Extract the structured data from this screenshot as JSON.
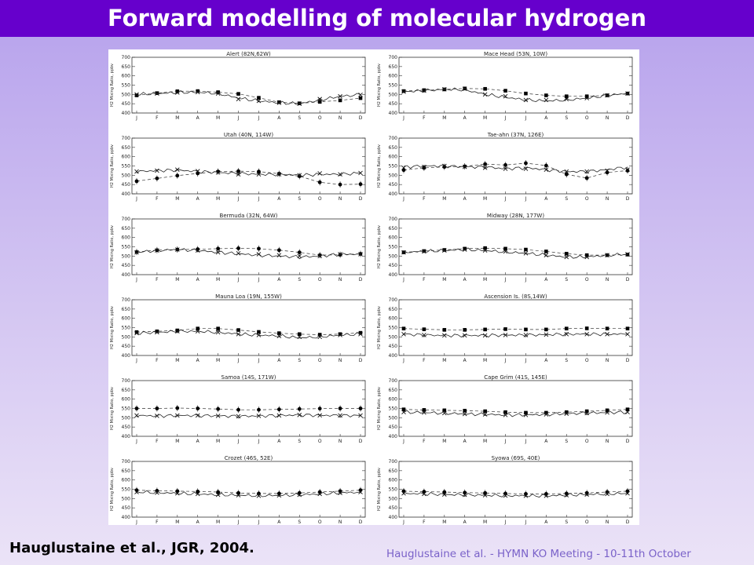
{
  "slide": {
    "title": "Forward modelling of molecular hydrogen",
    "citation": "Hauglustaine et al., JGR, 2004.",
    "footer": "Hauglustaine et al. - HYMN KO Meeting - 10-11th October",
    "title_bar_color": "#6600cc",
    "title_color": "#ffffff",
    "footer_color": "#7a62c9"
  },
  "chart_data": [
    {
      "type": "line",
      "title": "Alert (82N,62W)",
      "ylabel": "H2 Mixing Ratio, ppbv",
      "ylim": [
        400,
        700
      ],
      "yticks": [
        400,
        450,
        500,
        550,
        600,
        650,
        700
      ],
      "categories": [
        "J",
        "F",
        "M",
        "A",
        "M",
        "J",
        "J",
        "A",
        "S",
        "O",
        "N",
        "D"
      ],
      "series": [
        {
          "style": "observed-squares-dashed",
          "values": [
            495,
            507,
            517,
            518,
            512,
            503,
            482,
            458,
            452,
            460,
            468,
            480
          ]
        },
        {
          "style": "model-crosses",
          "values": [
            500,
            505,
            510,
            512,
            505,
            475,
            465,
            455,
            450,
            475,
            490,
            498
          ]
        },
        {
          "style": "continuous-solid",
          "values": [
            500,
            505,
            510,
            512,
            505,
            480,
            465,
            455,
            450,
            470,
            490,
            498
          ]
        }
      ]
    },
    {
      "type": "line",
      "title": "Mace Head (53N, 10W)",
      "ylabel": "H2 Mixing Ratio, ppbv",
      "ylim": [
        400,
        700
      ],
      "yticks": [
        400,
        450,
        500,
        550,
        600,
        650,
        700
      ],
      "categories": [
        "J",
        "F",
        "M",
        "A",
        "M",
        "J",
        "J",
        "A",
        "S",
        "O",
        "N",
        "D"
      ],
      "series": [
        {
          "style": "observed-squares-dashed",
          "values": [
            518,
            523,
            527,
            532,
            530,
            520,
            505,
            495,
            490,
            490,
            495,
            505
          ]
        },
        {
          "style": "model-crosses",
          "values": [
            515,
            520,
            528,
            530,
            500,
            490,
            470,
            470,
            475,
            480,
            495,
            505
          ]
        },
        {
          "style": "continuous-solid",
          "values": [
            515,
            520,
            528,
            525,
            500,
            485,
            470,
            465,
            470,
            480,
            495,
            505
          ]
        }
      ]
    },
    {
      "type": "line",
      "title": "Utah (40N, 114W)",
      "ylabel": "H2 Mixing Ratio, ppbv",
      "ylim": [
        400,
        700
      ],
      "yticks": [
        400,
        450,
        500,
        550,
        600,
        650,
        700
      ],
      "categories": [
        "J",
        "F",
        "M",
        "A",
        "M",
        "J",
        "J",
        "A",
        "S",
        "O",
        "N",
        "D"
      ],
      "series": [
        {
          "style": "observed-circles-dashed",
          "values": [
            468,
            483,
            498,
            510,
            520,
            522,
            520,
            508,
            495,
            462,
            450,
            452
          ]
        },
        {
          "style": "model-crosses",
          "values": [
            520,
            525,
            530,
            522,
            515,
            505,
            505,
            505,
            500,
            510,
            505,
            512
          ]
        },
        {
          "style": "continuous-solid",
          "values": [
            520,
            525,
            528,
            520,
            515,
            510,
            505,
            505,
            500,
            505,
            505,
            512
          ]
        }
      ]
    },
    {
      "type": "line",
      "title": "Tae-ahn (37N, 126E)",
      "ylabel": "H2 Mixing Ratio, ppbv",
      "ylim": [
        400,
        700
      ],
      "yticks": [
        400,
        450,
        500,
        550,
        600,
        650,
        700
      ],
      "categories": [
        "J",
        "F",
        "M",
        "A",
        "M",
        "J",
        "J",
        "A",
        "S",
        "O",
        "N",
        "D"
      ],
      "series": [
        {
          "style": "observed-circles-dashed",
          "values": [
            528,
            540,
            545,
            548,
            560,
            555,
            565,
            552,
            505,
            485,
            515,
            525
          ]
        },
        {
          "style": "model-crosses",
          "values": [
            540,
            545,
            550,
            545,
            540,
            535,
            535,
            530,
            520,
            520,
            525,
            530
          ]
        },
        {
          "style": "continuous-solid",
          "values": [
            545,
            550,
            550,
            545,
            545,
            535,
            540,
            530,
            520,
            520,
            530,
            545
          ]
        }
      ]
    },
    {
      "type": "line",
      "title": "Bermuda (32N, 64W)",
      "ylabel": "H2 Mixing Ratio, ppbv",
      "ylim": [
        400,
        700
      ],
      "yticks": [
        400,
        450,
        500,
        550,
        600,
        650,
        700
      ],
      "categories": [
        "J",
        "F",
        "M",
        "A",
        "M",
        "J",
        "J",
        "A",
        "S",
        "O",
        "N",
        "D"
      ],
      "series": [
        {
          "style": "observed-circles-dashed",
          "values": [
            522,
            532,
            535,
            537,
            540,
            542,
            540,
            532,
            520,
            505,
            507,
            512
          ]
        },
        {
          "style": "model-crosses",
          "values": [
            520,
            530,
            535,
            530,
            520,
            515,
            510,
            505,
            500,
            500,
            510,
            510
          ]
        },
        {
          "style": "continuous-solid",
          "values": [
            520,
            530,
            535,
            530,
            520,
            512,
            505,
            500,
            495,
            500,
            510,
            510
          ]
        }
      ]
    },
    {
      "type": "line",
      "title": "Midway (28N, 177W)",
      "ylabel": "H2 Mixing Ratio, ppbv",
      "ylim": [
        400,
        700
      ],
      "yticks": [
        400,
        450,
        500,
        550,
        600,
        650,
        700
      ],
      "categories": [
        "J",
        "F",
        "M",
        "A",
        "M",
        "J",
        "J",
        "A",
        "S",
        "O",
        "N",
        "D"
      ],
      "series": [
        {
          "style": "observed-squares-dashed",
          "values": [
            520,
            527,
            533,
            540,
            543,
            540,
            535,
            525,
            513,
            505,
            505,
            508
          ]
        },
        {
          "style": "model-crosses",
          "values": [
            520,
            525,
            530,
            535,
            530,
            525,
            515,
            505,
            495,
            495,
            505,
            510
          ]
        },
        {
          "style": "continuous-solid",
          "values": [
            520,
            525,
            530,
            535,
            530,
            522,
            515,
            505,
            495,
            495,
            505,
            510
          ]
        }
      ]
    },
    {
      "type": "line",
      "title": "Mauna Loa (19N, 155W)",
      "ylabel": "H2 Mixing Ratio, ppbv",
      "ylim": [
        400,
        700
      ],
      "yticks": [
        400,
        450,
        500,
        550,
        600,
        650,
        700
      ],
      "categories": [
        "J",
        "F",
        "M",
        "A",
        "M",
        "J",
        "J",
        "A",
        "S",
        "O",
        "N",
        "D"
      ],
      "series": [
        {
          "style": "observed-squares-dashed",
          "values": [
            526,
            530,
            535,
            545,
            545,
            537,
            527,
            520,
            515,
            512,
            515,
            522
          ]
        },
        {
          "style": "model-crosses",
          "values": [
            520,
            525,
            530,
            530,
            525,
            515,
            510,
            505,
            500,
            500,
            510,
            515
          ]
        },
        {
          "style": "continuous-solid",
          "values": [
            520,
            525,
            530,
            530,
            525,
            515,
            510,
            505,
            495,
            500,
            510,
            515
          ]
        }
      ]
    },
    {
      "type": "line",
      "title": "Ascension Is. (8S,14W)",
      "ylabel": "H2 Mixing Ratio, ppbv",
      "ylim": [
        400,
        700
      ],
      "yticks": [
        400,
        450,
        500,
        550,
        600,
        650,
        700
      ],
      "categories": [
        "J",
        "F",
        "M",
        "A",
        "M",
        "J",
        "J",
        "A",
        "S",
        "O",
        "N",
        "D"
      ],
      "series": [
        {
          "style": "observed-squares-dashed",
          "values": [
            545,
            541,
            538,
            538,
            540,
            542,
            540,
            540,
            545,
            546,
            545,
            545
          ]
        },
        {
          "style": "model-crosses",
          "values": [
            515,
            510,
            508,
            508,
            508,
            510,
            510,
            512,
            515,
            515,
            515,
            515
          ]
        },
        {
          "style": "continuous-solid",
          "values": [
            515,
            510,
            508,
            508,
            508,
            510,
            510,
            512,
            515,
            515,
            515,
            515
          ]
        }
      ]
    },
    {
      "type": "line",
      "title": "Samoa (14S, 171W)",
      "ylabel": "H2 Mixing Ratio, ppbv",
      "ylim": [
        400,
        700
      ],
      "yticks": [
        400,
        450,
        500,
        550,
        600,
        650,
        700
      ],
      "categories": [
        "J",
        "F",
        "M",
        "A",
        "M",
        "J",
        "J",
        "A",
        "S",
        "O",
        "N",
        "D"
      ],
      "series": [
        {
          "style": "observed-circles-dashed",
          "values": [
            550,
            550,
            552,
            550,
            547,
            543,
            543,
            545,
            547,
            549,
            550,
            550
          ]
        },
        {
          "style": "model-crosses",
          "values": [
            512,
            510,
            512,
            512,
            510,
            508,
            510,
            512,
            515,
            513,
            512,
            512
          ]
        },
        {
          "style": "continuous-solid",
          "values": [
            512,
            510,
            512,
            512,
            510,
            508,
            510,
            512,
            515,
            513,
            512,
            512
          ]
        }
      ]
    },
    {
      "type": "line",
      "title": "Cape Grim (41S, 145E)",
      "ylabel": "H2 Mixing Ratio, ppbv",
      "ylim": [
        400,
        700
      ],
      "yticks": [
        400,
        450,
        500,
        550,
        600,
        650,
        700
      ],
      "categories": [
        "J",
        "F",
        "M",
        "A",
        "M",
        "J",
        "J",
        "A",
        "S",
        "O",
        "N",
        "D"
      ],
      "series": [
        {
          "style": "observed-squares-dashed",
          "values": [
            545,
            542,
            540,
            538,
            535,
            530,
            527,
            527,
            530,
            535,
            540,
            545
          ]
        },
        {
          "style": "model-crosses",
          "values": [
            530,
            528,
            525,
            520,
            518,
            515,
            515,
            518,
            522,
            525,
            528,
            530
          ]
        },
        {
          "style": "continuous-solid",
          "values": [
            530,
            528,
            525,
            520,
            518,
            515,
            515,
            518,
            522,
            525,
            528,
            530
          ]
        }
      ]
    },
    {
      "type": "line",
      "title": "Crozet (46S, 52E)",
      "ylabel": "H2 Mixing Ratio, ppbv",
      "ylim": [
        400,
        700
      ],
      "yticks": [
        400,
        450,
        500,
        550,
        600,
        650,
        700
      ],
      "categories": [
        "J",
        "F",
        "M",
        "A",
        "M",
        "J",
        "J",
        "A",
        "S",
        "O",
        "N",
        "D"
      ],
      "series": [
        {
          "style": "observed-circles-dashed",
          "values": [
            545,
            542,
            540,
            538,
            535,
            530,
            527,
            527,
            530,
            535,
            540,
            545
          ]
        },
        {
          "style": "model-crosses",
          "values": [
            535,
            532,
            528,
            525,
            520,
            518,
            515,
            517,
            520,
            525,
            530,
            535
          ]
        },
        {
          "style": "continuous-solid",
          "values": [
            535,
            532,
            528,
            525,
            520,
            518,
            515,
            517,
            520,
            525,
            530,
            535
          ]
        }
      ]
    },
    {
      "type": "line",
      "title": "Syowa (69S, 40E)",
      "ylabel": "H2 Mixing Ratio, ppbv",
      "ylim": [
        400,
        700
      ],
      "yticks": [
        400,
        450,
        500,
        550,
        600,
        650,
        700
      ],
      "categories": [
        "J",
        "F",
        "M",
        "A",
        "M",
        "J",
        "J",
        "A",
        "S",
        "O",
        "N",
        "D"
      ],
      "series": [
        {
          "style": "observed-circles-dashed",
          "values": [
            540,
            537,
            535,
            532,
            530,
            527,
            525,
            525,
            527,
            530,
            535,
            540
          ]
        },
        {
          "style": "model-crosses",
          "values": [
            528,
            525,
            522,
            520,
            518,
            516,
            515,
            515,
            518,
            522,
            525,
            528
          ]
        },
        {
          "style": "continuous-solid",
          "values": [
            528,
            525,
            522,
            520,
            518,
            516,
            515,
            515,
            518,
            522,
            525,
            528
          ]
        }
      ]
    }
  ]
}
